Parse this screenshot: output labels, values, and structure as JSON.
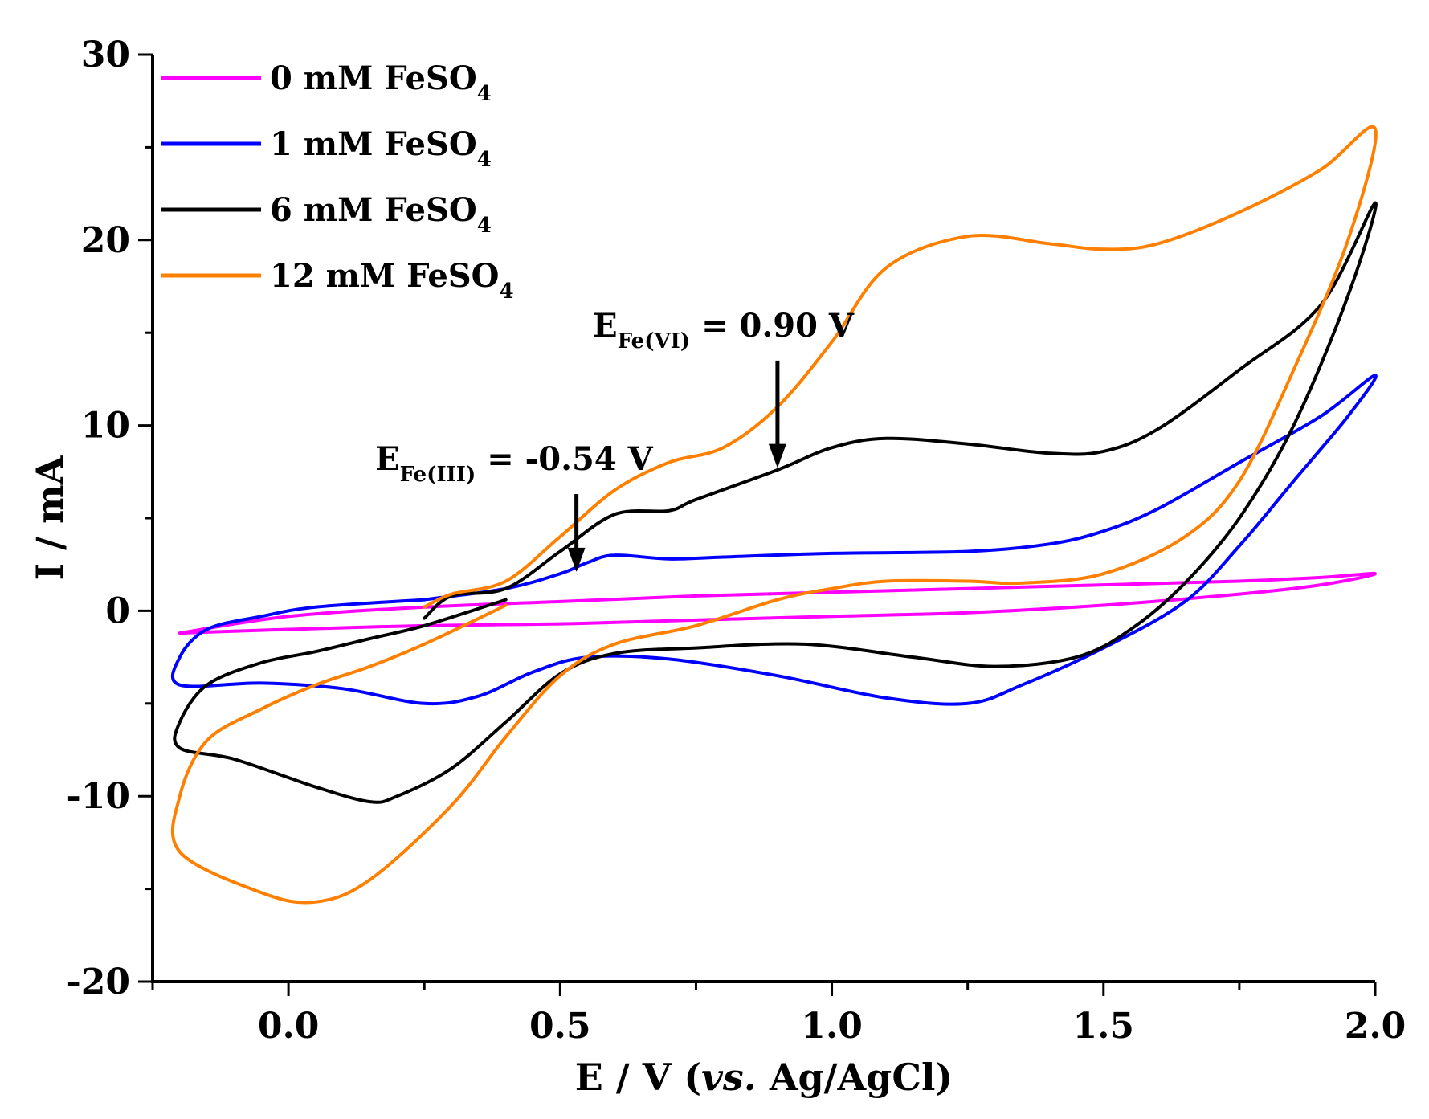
{
  "chart_data": {
    "type": "line",
    "xlabel": "E / V (vs. Ag/AgCl)",
    "xlabel_parts": {
      "pre": "E / V (",
      "italic": "vs.",
      "post": " Ag/AgCl)"
    },
    "ylabel": "I / mA",
    "xlim": [
      -0.25,
      2.0
    ],
    "ylim": [
      -20,
      30
    ],
    "x_ticks": [
      0.0,
      0.5,
      1.0,
      1.5,
      2.0
    ],
    "x_tick_labels": [
      "0.0",
      "0.5",
      "1.0",
      "1.5",
      "2.0"
    ],
    "y_ticks": [
      -20,
      -10,
      0,
      10,
      20,
      30
    ],
    "y_tick_labels": [
      "-20",
      "-10",
      "0",
      "10",
      "20",
      "30"
    ],
    "legend_position": "top-left",
    "series": [
      {
        "name": "0 mM FeSO4",
        "label_main": "0 mM FeSO",
        "label_sub": "4",
        "color": "#ff00ff",
        "x": [
          -0.2,
          0.0,
          0.25,
          0.5,
          0.75,
          1.0,
          1.25,
          1.5,
          1.75,
          1.9,
          2.0,
          1.9,
          1.75,
          1.5,
          1.25,
          1.0,
          0.75,
          0.5,
          0.25,
          0.0,
          -0.2
        ],
        "y": [
          -1.2,
          -0.3,
          0.2,
          0.5,
          0.8,
          1.0,
          1.2,
          1.4,
          1.6,
          1.8,
          2.0,
          1.4,
          0.9,
          0.3,
          -0.1,
          -0.3,
          -0.5,
          -0.7,
          -0.8,
          -1.0,
          -1.2
        ]
      },
      {
        "name": "1 mM FeSO4",
        "label_main": "1 mM FeSO",
        "label_sub": "4",
        "color": "#0000ff",
        "x": [
          0.25,
          0.4,
          0.5,
          0.55,
          0.6,
          0.7,
          0.8,
          1.0,
          1.25,
          1.4,
          1.5,
          1.6,
          1.75,
          1.9,
          2.0,
          1.95,
          1.85,
          1.75,
          1.65,
          1.5,
          1.35,
          1.25,
          1.1,
          0.9,
          0.7,
          0.55,
          0.45,
          0.35,
          0.25,
          0.1,
          -0.05,
          -0.2,
          -0.2,
          -0.15,
          -0.05,
          0.05,
          0.25
        ],
        "y": [
          0.6,
          1.2,
          2.0,
          2.6,
          3.0,
          2.8,
          2.9,
          3.1,
          3.2,
          3.6,
          4.3,
          5.5,
          8.0,
          10.5,
          12.7,
          10.5,
          7.0,
          3.5,
          0.5,
          -2.0,
          -4.0,
          -5.0,
          -4.7,
          -3.5,
          -2.6,
          -2.5,
          -3.3,
          -4.6,
          -5.0,
          -4.2,
          -3.9,
          -4.0,
          -2.5,
          -1.0,
          -0.3,
          0.2,
          0.6
        ]
      },
      {
        "name": "6 mM FeSO4",
        "label_main": "6 mM FeSO",
        "label_sub": "4",
        "color": "#000000",
        "x": [
          0.25,
          0.3,
          0.4,
          0.5,
          0.6,
          0.7,
          0.75,
          0.9,
          1.0,
          1.1,
          1.25,
          1.4,
          1.5,
          1.6,
          1.75,
          1.9,
          2.0,
          1.95,
          1.85,
          1.75,
          1.65,
          1.55,
          1.45,
          1.3,
          1.15,
          0.95,
          0.75,
          0.6,
          0.5,
          0.4,
          0.3,
          0.2,
          0.15,
          0.05,
          -0.1,
          -0.2,
          -0.2,
          -0.15,
          -0.05,
          0.05,
          0.15,
          0.25,
          0.4
        ],
        "y": [
          -0.4,
          0.8,
          1.2,
          3.2,
          5.2,
          5.4,
          6.0,
          7.6,
          8.8,
          9.3,
          9.0,
          8.5,
          8.6,
          9.8,
          13.0,
          16.5,
          22.0,
          17.0,
          10.0,
          5.0,
          1.5,
          -1.0,
          -2.5,
          -3.0,
          -2.5,
          -1.8,
          -2.0,
          -2.3,
          -3.4,
          -6.0,
          -8.5,
          -10.0,
          -10.3,
          -9.5,
          -8.0,
          -7.4,
          -6.0,
          -4.0,
          -2.8,
          -2.2,
          -1.5,
          -0.8,
          0.6
        ]
      },
      {
        "name": "12 mM FeSO4",
        "label_main": "12 mM FeSO",
        "label_sub": "4",
        "color": "#ff8000",
        "x": [
          0.25,
          0.3,
          0.4,
          0.5,
          0.6,
          0.7,
          0.8,
          0.9,
          1.0,
          1.1,
          1.25,
          1.4,
          1.5,
          1.6,
          1.75,
          1.9,
          2.0,
          1.95,
          1.85,
          1.75,
          1.65,
          1.5,
          1.35,
          1.25,
          1.1,
          1.0,
          0.9,
          0.75,
          0.6,
          0.5,
          0.4,
          0.3,
          0.15,
          0.05,
          -0.05,
          -0.2,
          -0.2,
          -0.15,
          -0.05,
          0.05,
          0.15,
          0.25,
          0.4
        ],
        "y": [
          0.2,
          0.9,
          1.6,
          4.0,
          6.5,
          8.0,
          8.8,
          11.0,
          14.5,
          18.5,
          20.2,
          19.8,
          19.5,
          19.8,
          21.5,
          23.8,
          26.0,
          20.0,
          13.0,
          7.0,
          4.0,
          2.0,
          1.5,
          1.6,
          1.6,
          1.2,
          0.6,
          -0.8,
          -1.8,
          -3.5,
          -6.8,
          -10.5,
          -14.5,
          -15.7,
          -15.2,
          -13.0,
          -10.0,
          -7.0,
          -5.3,
          -4.0,
          -3.0,
          -1.8,
          0.3
        ]
      }
    ],
    "annotations": [
      {
        "label_main": "E",
        "label_sub": "Fe(VI)",
        "label_post": " = 0.90 V",
        "x": 0.9,
        "arrow_from_y": 13.5,
        "arrow_to_y": 7.7
      },
      {
        "label_main": "E",
        "label_sub": "Fe(III)",
        "label_post": " = -0.54 V",
        "x": 0.53,
        "arrow_from_y": 6.3,
        "arrow_to_y": 2.1
      }
    ]
  }
}
